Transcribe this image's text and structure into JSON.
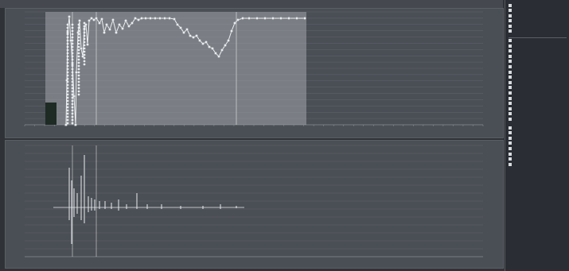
{
  "window": {
    "title": "",
    "accent": "#e9ecef",
    "grid_color": "#62666d"
  },
  "upper_chart": {
    "x_axis_label": "",
    "y_ticks_left": [
      "",
      "",
      "",
      "",
      "",
      "",
      "",
      "",
      "",
      "",
      "",
      "",
      "",
      "",
      "",
      "",
      "",
      "",
      ""
    ],
    "y_ticks_right": [
      "",
      "",
      "",
      "",
      "",
      "",
      "",
      "",
      "",
      "",
      "",
      "",
      "",
      "",
      "",
      "",
      "",
      "",
      ""
    ],
    "x_ticks": [
      "",
      "",
      "",
      "",
      "",
      "",
      "",
      "",
      "",
      "",
      "",
      "",
      "",
      "",
      "",
      "",
      "",
      "",
      "",
      "",
      "",
      "",
      "",
      "",
      "",
      "",
      "",
      "",
      "",
      "",
      "",
      "",
      "",
      "",
      "",
      "",
      "",
      "",
      "",
      "",
      "",
      "",
      "",
      "",
      "",
      "",
      ""
    ]
  },
  "lower_chart": {
    "x_axis_label": "",
    "y_ticks_left": [
      "",
      "",
      "",
      "",
      "",
      "",
      "",
      "",
      "",
      "",
      "",
      "",
      "",
      "",
      ""
    ],
    "x_ticks": [
      "",
      "",
      "",
      "",
      "",
      "",
      "",
      "",
      "",
      "",
      "",
      "",
      "",
      "",
      "",
      "",
      "",
      "",
      "",
      "",
      "",
      "",
      "",
      "",
      "",
      "",
      "",
      "",
      "",
      "",
      "",
      "",
      "",
      "",
      "",
      "",
      "",
      "",
      "",
      "",
      "",
      "",
      "",
      "",
      "",
      "",
      ""
    ]
  },
  "sidebar": {
    "legend": [
      {
        "label": "",
        "value": ""
      },
      {
        "label": "",
        "value": ""
      },
      {
        "label": "",
        "value": ""
      },
      {
        "label": "",
        "value": ""
      },
      {
        "label": "",
        "value": ""
      },
      {
        "label": "",
        "value": ""
      }
    ],
    "section_title": "",
    "stats": [
      {
        "label": "",
        "value": ""
      },
      {
        "label": "",
        "value": ""
      },
      {
        "label": "",
        "value": ""
      },
      {
        "label": "",
        "value": ""
      },
      {
        "label": "",
        "value": ""
      },
      {
        "label": "",
        "value": ""
      },
      {
        "label": "",
        "value": ""
      },
      {
        "label": "",
        "value": ""
      },
      {
        "label": "",
        "value": ""
      },
      {
        "label": "",
        "value": ""
      },
      {
        "label": "",
        "value": ""
      },
      {
        "label": "",
        "value": ""
      },
      {
        "label": "",
        "value": ""
      },
      {
        "label": "",
        "value": ""
      },
      {
        "label": "",
        "value": ""
      },
      {
        "label": "",
        "value": ""
      }
    ],
    "stats2": [
      {
        "label": "",
        "value": ""
      },
      {
        "label": "",
        "value": ""
      },
      {
        "label": "",
        "value": ""
      },
      {
        "label": "",
        "value": ""
      },
      {
        "label": "",
        "value": ""
      },
      {
        "label": "",
        "value": ""
      },
      {
        "label": "",
        "value": ""
      },
      {
        "label": "",
        "value": ""
      }
    ]
  }
}
